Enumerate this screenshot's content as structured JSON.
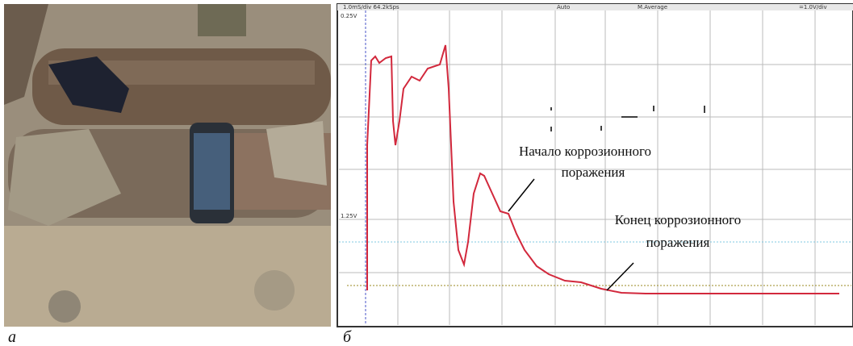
{
  "panels": [
    {
      "label": "а"
    },
    {
      "label": "б",
      "header": [
        "1.0mS/div 64.2kSps",
        "Auto",
        "M.Average",
        "=1.0V/div"
      ],
      "level_labels": [
        "0.25V",
        "1.25V"
      ],
      "annotations": [
        {
          "lines": [
            "Начало коррозионного",
            "поражения"
          ]
        },
        {
          "lines": [
            "Конец коррозионного",
            "поражения"
          ]
        }
      ]
    }
  ]
}
